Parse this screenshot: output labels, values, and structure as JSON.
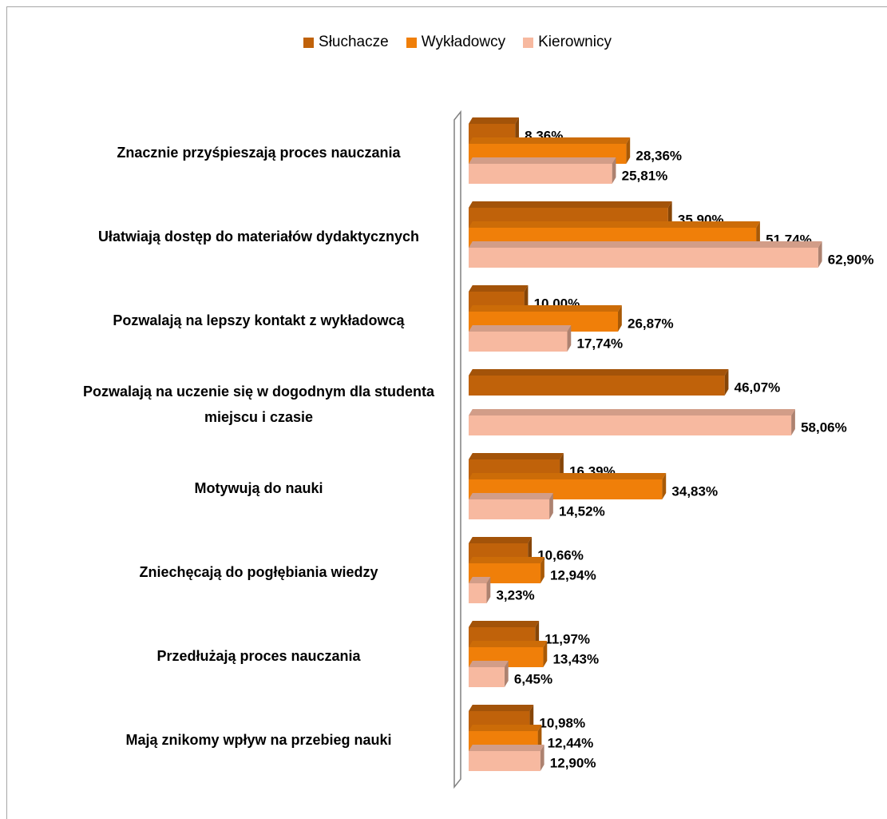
{
  "chart_data": {
    "type": "bar",
    "orientation": "horizontal",
    "legend": "top",
    "categories": [
      "Znacznie przyśpieszają proces nauczania",
      "Ułatwiają dostęp do materiałów dydaktycznych",
      "Pozwalają na lepszy kontakt z wykładowcą",
      "Pozwalają na uczenie się w dogodnym dla studenta miejscu i czasie",
      "Motywują do nauki",
      "Zniechęcają do pogłębiania wiedzy",
      "Przedłużają proces nauczania",
      "Mają znikomy wpływ na przebieg nauki"
    ],
    "series": [
      {
        "name": "Słuchacze",
        "color": "#c0620a",
        "values": [
          8.36,
          35.9,
          10.0,
          46.07,
          16.39,
          10.66,
          11.97,
          10.98
        ],
        "value_labels": [
          "8,36%",
          "35,90%",
          "10,00%",
          "46,07%",
          "16,39%",
          "10,66%",
          "11,97%",
          "10,98%"
        ]
      },
      {
        "name": "Wykładowcy",
        "color": "#f07f09",
        "values": [
          28.36,
          51.74,
          26.87,
          null,
          34.83,
          12.94,
          13.43,
          12.44
        ],
        "value_labels": [
          "28,36%",
          "51,74%",
          "26,87%",
          null,
          "34,83%",
          "12,94%",
          "13,43%",
          "12,44%"
        ]
      },
      {
        "name": "Kierownicy",
        "color": "#f7b9a0",
        "values": [
          25.81,
          62.9,
          17.74,
          58.06,
          14.52,
          3.23,
          6.45,
          12.9
        ],
        "value_labels": [
          "25,81%",
          "62,90%",
          "17,74%",
          "58,06%",
          "14,52%",
          "3,23%",
          "6,45%",
          "12,90%"
        ]
      }
    ]
  }
}
